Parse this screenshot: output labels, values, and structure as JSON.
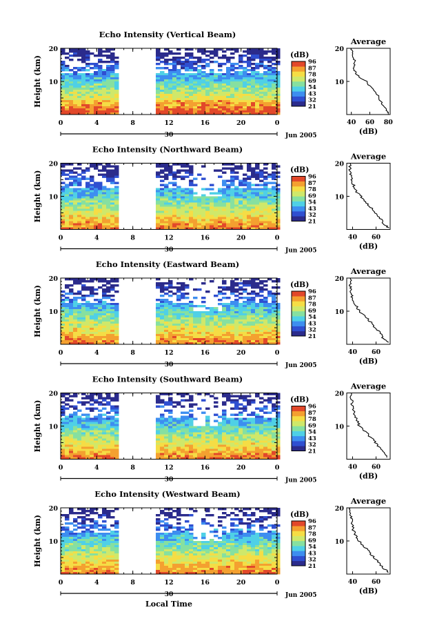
{
  "figure": {
    "x_title": "Local Time",
    "day_label": "30",
    "month_label": "Jun 2005"
  },
  "colorbar": {
    "unit": "(dB)",
    "ticks": [
      "96",
      "87",
      "78",
      "69",
      "54",
      "43",
      "32",
      "21"
    ],
    "colors": [
      "#2b2b8c",
      "#2f4fd1",
      "#3d8ef0",
      "#4fd0e6",
      "#86e0a0",
      "#cfe86a",
      "#f5dd45",
      "#f4a030",
      "#e2482a"
    ]
  },
  "chart_data": [
    {
      "type": "heatmap",
      "panel": "vertical",
      "title": "Echo Intensity (Vertical Beam)",
      "ylabel": "Height (km)",
      "x_ticks": [
        "0",
        "4",
        "8",
        "12",
        "16",
        "20",
        "0"
      ],
      "y_ticks": [
        "20",
        "10"
      ],
      "ylim": [
        0,
        20
      ],
      "xlim": [
        0,
        24
      ],
      "no_data_gap_hours": [
        6.8,
        10.2
      ],
      "profile": {
        "title": "Average",
        "xlabel": "(dB)",
        "x_ticks": [
          "40",
          "60",
          "80"
        ],
        "y_ticks": [
          "20",
          "10"
        ],
        "xlim": [
          35,
          82
        ],
        "height": [
          0.5,
          2,
          4,
          6,
          8,
          10,
          12,
          14,
          16,
          18,
          20
        ],
        "db": [
          80,
          76,
          72,
          68,
          62,
          56,
          46,
          42,
          44,
          41,
          40
        ]
      }
    },
    {
      "type": "heatmap",
      "panel": "northward",
      "title": "Echo Intensity (Northward Beam)",
      "ylabel": "Height (km)",
      "x_ticks": [
        "0",
        "4",
        "8",
        "12",
        "16",
        "20",
        "0"
      ],
      "y_ticks": [
        "20",
        "10"
      ],
      "ylim": [
        0,
        20
      ],
      "xlim": [
        0,
        24
      ],
      "no_data_gap_hours": [
        6.8,
        10.2
      ],
      "profile": {
        "title": "Average",
        "xlabel": "(dB)",
        "x_ticks": [
          "40",
          "60"
        ],
        "y_ticks": [
          "20",
          "10"
        ],
        "xlim": [
          35,
          72
        ],
        "height": [
          0.5,
          2,
          4,
          6,
          8,
          10,
          12,
          14,
          16,
          18,
          20
        ],
        "db": [
          70,
          66,
          62,
          57,
          52,
          47,
          42,
          40,
          39,
          38,
          38
        ]
      }
    },
    {
      "type": "heatmap",
      "panel": "eastward",
      "title": "Echo Intensity (Eastward Beam)",
      "ylabel": "Height (km)",
      "x_ticks": [
        "0",
        "4",
        "8",
        "12",
        "16",
        "20",
        "0"
      ],
      "y_ticks": [
        "20",
        "10"
      ],
      "ylim": [
        0,
        20
      ],
      "xlim": [
        0,
        24
      ],
      "no_data_gap_hours": [
        6.8,
        10.2
      ],
      "profile": {
        "title": "Average",
        "xlabel": "(dB)",
        "x_ticks": [
          "40",
          "60"
        ],
        "y_ticks": [
          "20",
          "10"
        ],
        "xlim": [
          35,
          72
        ],
        "height": [
          0.5,
          2,
          4,
          6,
          8,
          10,
          12,
          14,
          16,
          18,
          20
        ],
        "db": [
          70,
          66,
          62,
          57,
          52,
          46,
          42,
          40,
          39,
          38,
          38
        ]
      }
    },
    {
      "type": "heatmap",
      "panel": "southward",
      "title": "Echo Intensity (Southward Beam)",
      "ylabel": "Height (km)",
      "x_ticks": [
        "0",
        "4",
        "8",
        "12",
        "16",
        "20",
        "0"
      ],
      "y_ticks": [
        "20",
        "10"
      ],
      "ylim": [
        0,
        20
      ],
      "xlim": [
        0,
        24
      ],
      "no_data_gap_hours": [
        6.8,
        10.2
      ],
      "profile": {
        "title": "Average",
        "xlabel": "(dB)",
        "x_ticks": [
          "40",
          "60"
        ],
        "y_ticks": [
          "20",
          "10"
        ],
        "xlim": [
          35,
          72
        ],
        "height": [
          0.5,
          2,
          4,
          6,
          8,
          10,
          12,
          14,
          16,
          18,
          20
        ],
        "db": [
          70,
          67,
          62,
          57,
          52,
          46,
          43,
          41,
          40,
          39,
          39
        ]
      }
    },
    {
      "type": "heatmap",
      "panel": "westward",
      "title": "Echo Intensity (Westward Beam)",
      "ylabel": "Height (km)",
      "x_ticks": [
        "0",
        "4",
        "8",
        "12",
        "16",
        "20",
        "0"
      ],
      "y_ticks": [
        "20",
        "10"
      ],
      "ylim": [
        0,
        20
      ],
      "xlim": [
        0,
        24
      ],
      "no_data_gap_hours": [
        6.8,
        10.2
      ],
      "profile": {
        "title": "Average",
        "xlabel": "(dB)",
        "x_ticks": [
          "40",
          "60"
        ],
        "y_ticks": [
          "20",
          "10"
        ],
        "xlim": [
          35,
          72
        ],
        "height": [
          0.5,
          2,
          4,
          6,
          8,
          10,
          12,
          14,
          16,
          18,
          20
        ],
        "db": [
          70,
          66,
          61,
          56,
          51,
          45,
          42,
          40,
          39,
          38,
          38
        ]
      }
    }
  ]
}
